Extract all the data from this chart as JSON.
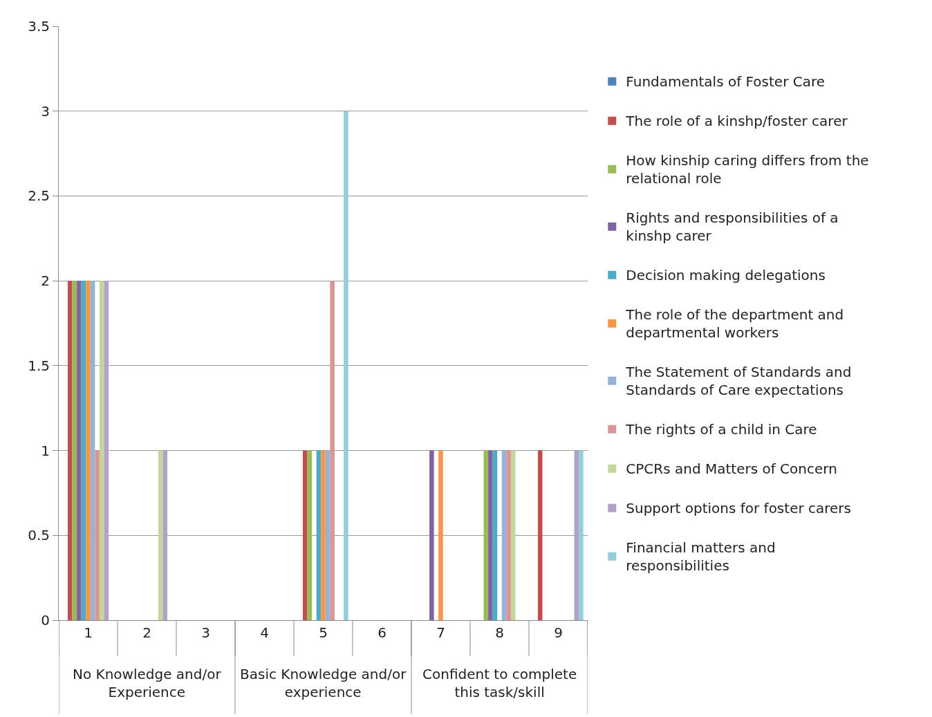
{
  "chart_data": {
    "type": "bar",
    "categories": [
      "1",
      "2",
      "3",
      "4",
      "5",
      "6",
      "7",
      "8",
      "9"
    ],
    "annotations": [
      "No Knowledge and/or Experience",
      "Basic Knowledge and/or experience",
      "Confident to complete this task/skill"
    ],
    "series": [
      {
        "name": "Fundamentals of Foster Care",
        "color": "#4f81bd",
        "values": [
          0,
          0,
          0,
          0,
          0,
          0,
          0,
          0,
          0
        ]
      },
      {
        "name": "The role of a kinshp/foster carer",
        "color": "#c0504d",
        "values": [
          2,
          0,
          0,
          0,
          1,
          0,
          0,
          0,
          1
        ]
      },
      {
        "name": "How kinship caring differs from the relational role",
        "color": "#9bbb59",
        "values": [
          2,
          0,
          0,
          0,
          1,
          0,
          0,
          1,
          0
        ]
      },
      {
        "name": "Rights and responsibilities of a kinshp carer",
        "color": "#8064a2",
        "values": [
          2,
          0,
          0,
          0,
          0,
          0,
          1,
          1,
          0
        ]
      },
      {
        "name": "Decision making delegations",
        "color": "#4bacc6",
        "values": [
          2,
          0,
          0,
          0,
          1,
          0,
          0,
          1,
          0
        ]
      },
      {
        "name": "The role of the department and departmental workers",
        "color": "#f79646",
        "values": [
          2,
          0,
          0,
          0,
          1,
          0,
          1,
          0,
          0
        ]
      },
      {
        "name": "The Statement of Standards and Standards of Care expectations",
        "color": "#95b3d7",
        "values": [
          2,
          0,
          0,
          0,
          1,
          0,
          0,
          1,
          0
        ]
      },
      {
        "name": "The rights of a child in Care",
        "color": "#d99694",
        "values": [
          1,
          0,
          0,
          0,
          2,
          0,
          0,
          1,
          0
        ]
      },
      {
        "name": "CPCRs and Matters of Concern",
        "color": "#c3d69b",
        "values": [
          2,
          1,
          0,
          0,
          0,
          0,
          0,
          1,
          0
        ]
      },
      {
        "name": "Support options for foster carers",
        "color": "#b2a2c7",
        "values": [
          2,
          1,
          0,
          0,
          0,
          0,
          0,
          0,
          1
        ]
      },
      {
        "name": "Financial matters and responsibilities",
        "color": "#93cddd",
        "values": [
          0,
          0,
          0,
          0,
          3,
          0,
          0,
          0,
          1
        ]
      }
    ],
    "ylim": [
      0,
      3.5
    ],
    "yticks": [
      0,
      0.5,
      1,
      1.5,
      2,
      2.5,
      3,
      3.5
    ],
    "grid": "y",
    "legend": "right"
  }
}
